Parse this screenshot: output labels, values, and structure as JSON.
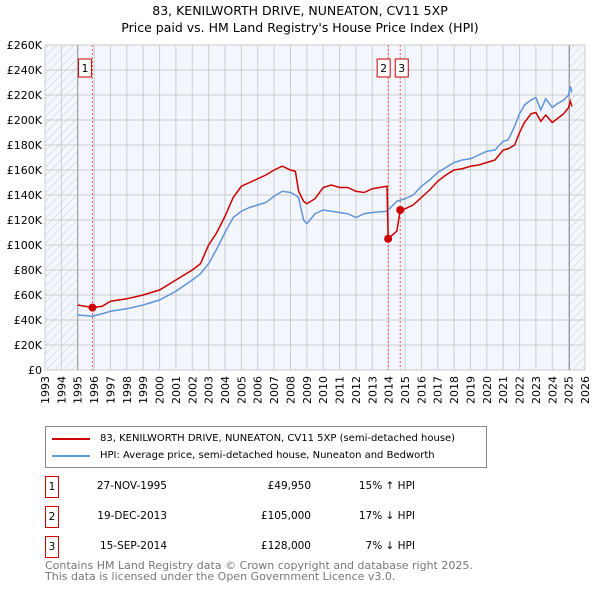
{
  "chart_data": {
    "type": "line",
    "title": "83, KENILWORTH DRIVE, NUNEATON, CV11 5XP",
    "subtitle": "Price paid vs. HM Land Registry's House Price Index (HPI)",
    "xlim": [
      1993,
      2026
    ],
    "ylim": [
      0,
      260000
    ],
    "x_ticks": [
      "1993",
      "1994",
      "1995",
      "1996",
      "1997",
      "1998",
      "1999",
      "2000",
      "2001",
      "2002",
      "2003",
      "2004",
      "2005",
      "2006",
      "2007",
      "2008",
      "2009",
      "2010",
      "2011",
      "2012",
      "2013",
      "2014",
      "2015",
      "2016",
      "2017",
      "2018",
      "2019",
      "2020",
      "2021",
      "2022",
      "2023",
      "2024",
      "2025",
      "2026"
    ],
    "y_ticks": [
      "£0",
      "£20K",
      "£40K",
      "£60K",
      "£80K",
      "£100K",
      "£120K",
      "£140K",
      "£160K",
      "£180K",
      "£200K",
      "£220K",
      "£240K",
      "£260K"
    ],
    "grid": true,
    "series": [
      {
        "name": "83, KENILWORTH DRIVE, NUNEATON, CV11 5XP (semi-detached house)",
        "color": "#cc0000",
        "x": [
          1995.0,
          1995.9,
          1996.5,
          1997,
          1998,
          1999,
          2000,
          2001,
          2002,
          2002.5,
          2003,
          2003.5,
          2004,
          2004.5,
          2005,
          2005.5,
          2006,
          2006.5,
          2007,
          2007.5,
          2008,
          2008.3,
          2008.5,
          2008.8,
          2009,
          2009.5,
          2010,
          2010.5,
          2011,
          2011.5,
          2012,
          2012.5,
          2013,
          2013.9,
          2013.97,
          2014.5,
          2014.71,
          2015,
          2015.5,
          2016,
          2016.5,
          2017,
          2017.5,
          2018,
          2018.5,
          2019,
          2019.5,
          2020,
          2020.5,
          2021,
          2021.3,
          2021.7,
          2022,
          2022.3,
          2022.7,
          2023,
          2023.3,
          2023.6,
          2024,
          2024.3,
          2024.7,
          2025,
          2025.1,
          2025.2
        ],
        "y": [
          52000,
          49950,
          51000,
          55000,
          57000,
          60000,
          64000,
          72000,
          80000,
          85000,
          100000,
          110000,
          123000,
          138000,
          147000,
          150000,
          153000,
          156000,
          160000,
          163000,
          160000,
          159000,
          143000,
          135000,
          133000,
          137000,
          146000,
          148000,
          146000,
          146000,
          143000,
          142000,
          145000,
          147000,
          105000,
          111000,
          128000,
          129000,
          132000,
          138000,
          144000,
          151000,
          156000,
          160000,
          161000,
          163000,
          164000,
          166000,
          168000,
          176000,
          177000,
          180000,
          190000,
          198000,
          205000,
          206000,
          199000,
          204000,
          198000,
          201000,
          205000,
          210000,
          215000,
          211000
        ]
      },
      {
        "name": "HPI: Average price, semi-detached house, Nuneaton and Bedworth",
        "color": "#6095d8",
        "x": [
          1995.0,
          1995.9,
          1996.5,
          1997,
          1998,
          1999,
          2000,
          2001,
          2002,
          2002.5,
          2003,
          2003.5,
          2004,
          2004.5,
          2005,
          2005.5,
          2006,
          2006.5,
          2007,
          2007.5,
          2008,
          2008.3,
          2008.5,
          2008.8,
          2009,
          2009.5,
          2010,
          2010.5,
          2011,
          2011.5,
          2012,
          2012.5,
          2013,
          2013.9,
          2014.5,
          2015,
          2015.5,
          2016,
          2016.5,
          2017,
          2017.5,
          2018,
          2018.5,
          2019,
          2019.5,
          2020,
          2020.5,
          2021,
          2021.3,
          2021.7,
          2022,
          2022.3,
          2022.7,
          2023,
          2023.3,
          2023.6,
          2024,
          2024.3,
          2024.7,
          2025,
          2025.1,
          2025.2
        ],
        "y": [
          44000,
          43000,
          45000,
          47000,
          49000,
          52000,
          56000,
          63000,
          72000,
          77000,
          85000,
          97000,
          110000,
          122000,
          127000,
          130000,
          132000,
          134000,
          139000,
          143000,
          142000,
          140000,
          138000,
          120000,
          117000,
          125000,
          128000,
          127000,
          126000,
          125000,
          122000,
          125000,
          126000,
          127000,
          135000,
          137000,
          140000,
          147000,
          152000,
          158000,
          162000,
          166000,
          168000,
          169000,
          172000,
          175000,
          176000,
          183000,
          184000,
          195000,
          205000,
          212000,
          216000,
          218000,
          208000,
          217000,
          210000,
          213000,
          216000,
          220000,
          227000,
          222000
        ]
      }
    ],
    "markers": [
      {
        "label": "1",
        "x": 1995.9,
        "y": 49950
      },
      {
        "label": "2",
        "x": 2013.97,
        "y": 105000
      },
      {
        "label": "3",
        "x": 2014.71,
        "y": 128000
      }
    ]
  },
  "legend": {
    "red": "83, KENILWORTH DRIVE, NUNEATON, CV11 5XP (semi-detached house)",
    "blue": "HPI: Average price, semi-detached house, Nuneaton and Bedworth"
  },
  "sales": [
    {
      "num": "1",
      "date": "27-NOV-1995",
      "price": "£49,950",
      "hpi": "15% ↑ HPI"
    },
    {
      "num": "2",
      "date": "19-DEC-2013",
      "price": "£105,000",
      "hpi": "17% ↓ HPI"
    },
    {
      "num": "3",
      "date": "15-SEP-2014",
      "price": "£128,000",
      "hpi": "7% ↓ HPI"
    }
  ],
  "footer": {
    "line1": "Contains HM Land Registry data © Crown copyright and database right 2025.",
    "line2": "This data is licensed under the Open Government Licence v3.0."
  }
}
